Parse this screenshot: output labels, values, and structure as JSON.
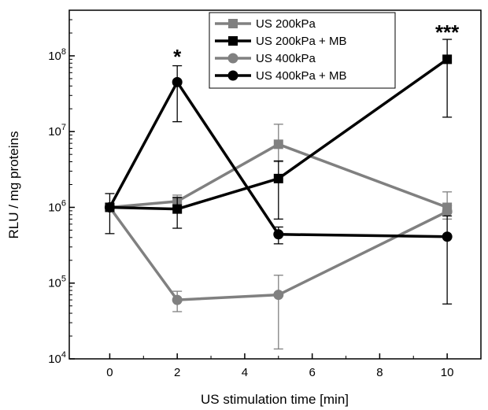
{
  "chart_data": {
    "type": "line",
    "title": "",
    "xlabel": "US stimulation time [min]",
    "ylabel": "RLU / mg proteins",
    "xlim": [
      -1.2,
      11
    ],
    "ylim": [
      10000,
      400000000
    ],
    "yscale": "log",
    "x_ticks": [
      0,
      2,
      4,
      6,
      8,
      10
    ],
    "y_ticks": [
      {
        "value": 10000,
        "base": "10",
        "exp": "4"
      },
      {
        "value": 100000,
        "base": "10",
        "exp": "5"
      },
      {
        "value": 1000000,
        "base": "10",
        "exp": "6"
      },
      {
        "value": 10000000,
        "base": "10",
        "exp": "7"
      },
      {
        "value": 100000000,
        "base": "10",
        "exp": "8"
      }
    ],
    "grid": false,
    "legend_position": "top-right",
    "series": [
      {
        "name": "US 200kPa",
        "color": "#808080",
        "marker": "square",
        "x": [
          0,
          2,
          5,
          10
        ],
        "y": [
          1000000,
          1200000,
          6800000,
          1000000
        ],
        "err_low": [
          1000000,
          1000000,
          4000000,
          850000
        ],
        "err_high": [
          1000000,
          1450000,
          12500000,
          1600000
        ]
      },
      {
        "name": "US 200kPa + MB",
        "color": "#000000",
        "marker": "square",
        "x": [
          0,
          2,
          5,
          10
        ],
        "y": [
          1000000,
          950000,
          2400000,
          90000000
        ],
        "err_low": [
          1000000,
          530000,
          700000,
          15500000
        ],
        "err_high": [
          1000000,
          1350000,
          4100000,
          165000000
        ]
      },
      {
        "name": "US 400kPa",
        "color": "#808080",
        "marker": "circle",
        "x": [
          0,
          2,
          5,
          10
        ],
        "y": [
          1000000,
          60000,
          70000,
          880000
        ],
        "err_low": [
          1000000,
          42000,
          13500,
          700000
        ],
        "err_high": [
          1000000,
          78000,
          127000,
          1050000
        ]
      },
      {
        "name": "US 400kPa + MB",
        "color": "#000000",
        "marker": "circle",
        "x": [
          0,
          2,
          5,
          10
        ],
        "y": [
          1000000,
          45000000,
          440000,
          410000
        ],
        "err_low": [
          450000,
          13500000,
          330000,
          53000
        ],
        "err_high": [
          1520000,
          74000000,
          550000,
          770000
        ]
      }
    ],
    "annotations": [
      {
        "text": "*",
        "x": 2,
        "y": 110000000
      },
      {
        "text": "***",
        "x": 10,
        "y": 230000000
      }
    ]
  }
}
